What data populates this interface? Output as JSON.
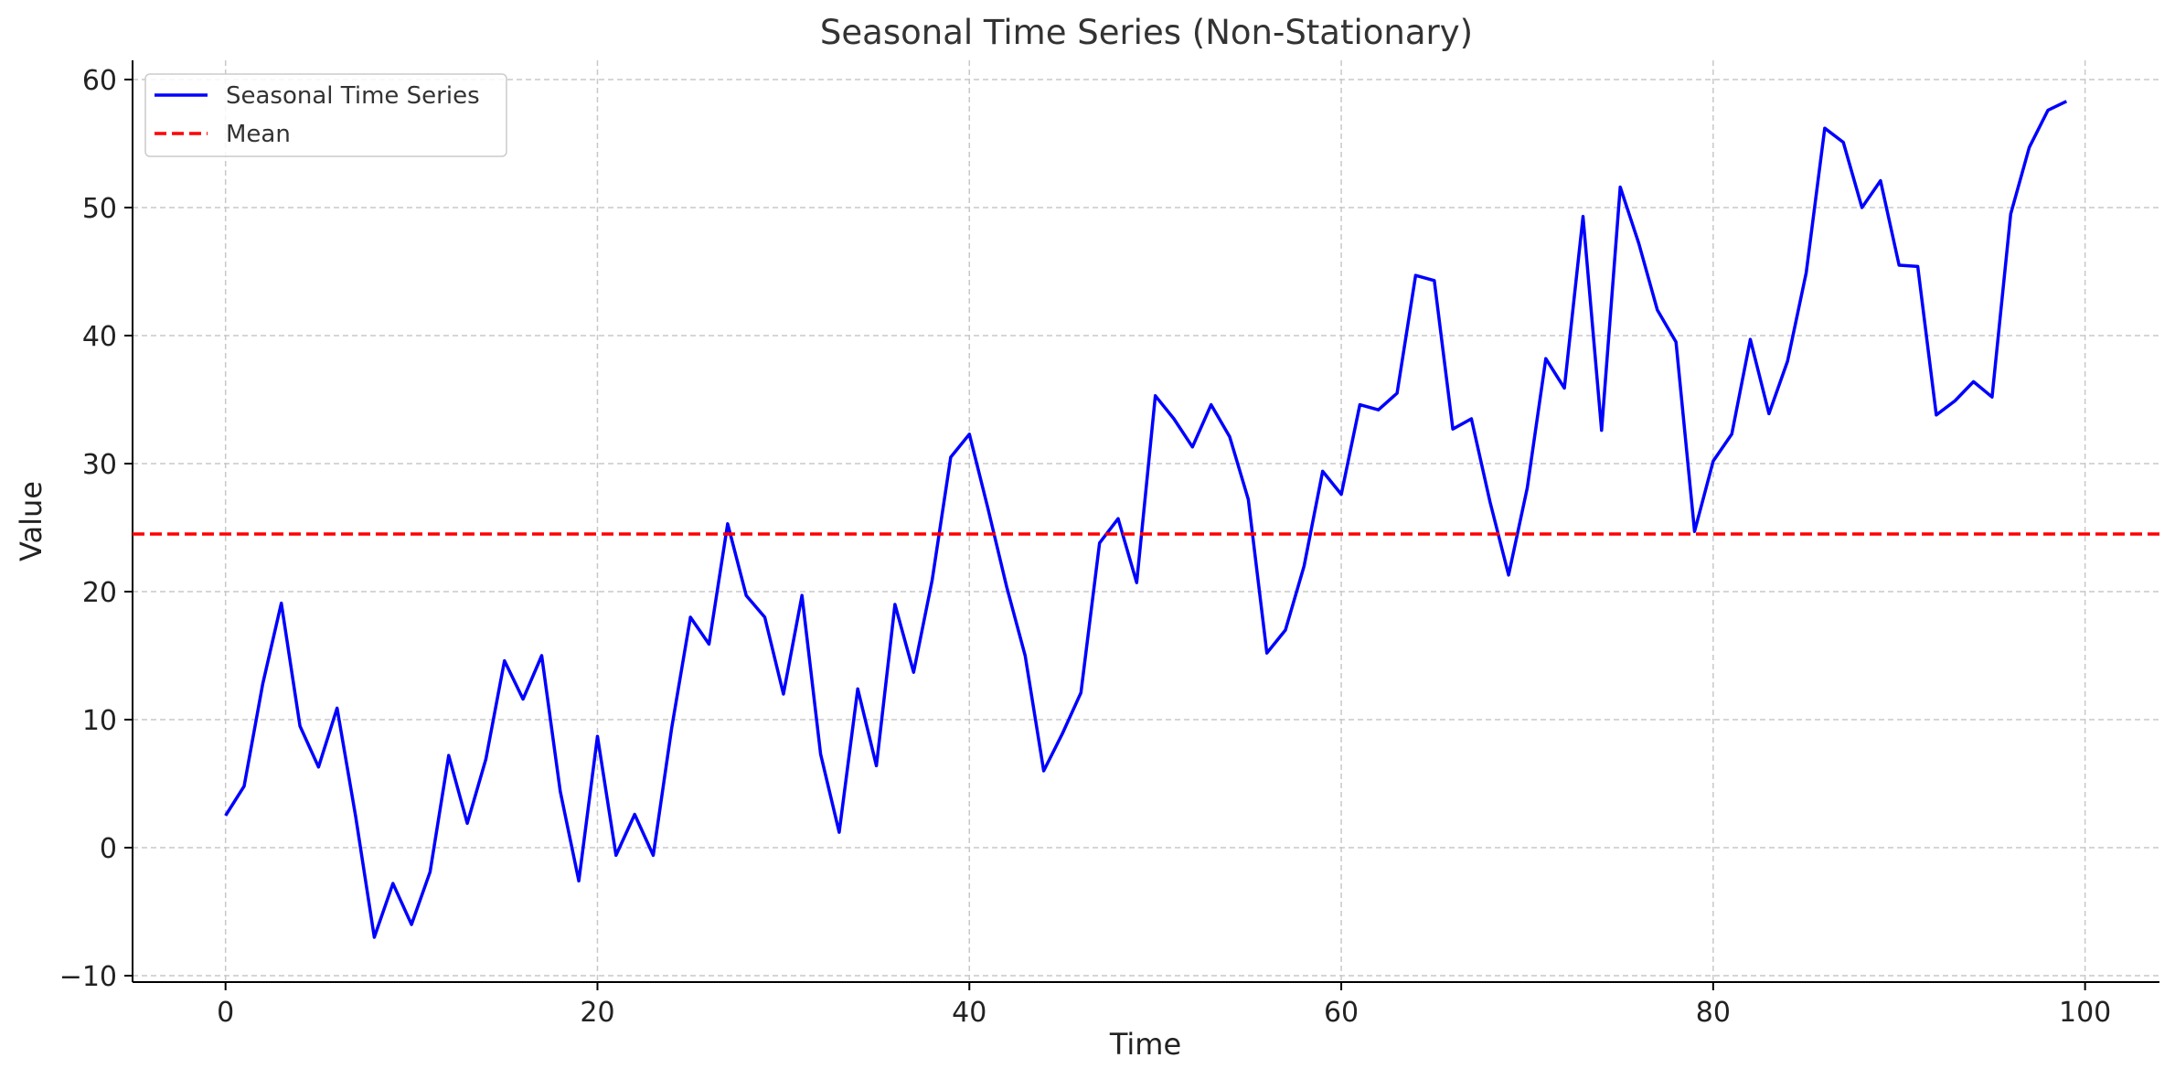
{
  "chart_data": {
    "type": "line",
    "title": "Seasonal Time Series (Non-Stationary)",
    "xlabel": "Time",
    "ylabel": "Value",
    "xlim": [
      -5,
      104
    ],
    "ylim": [
      -10.5,
      61.5
    ],
    "x_ticks": [
      0,
      20,
      40,
      60,
      80,
      100
    ],
    "x_tick_labels": [
      "0",
      "20",
      "40",
      "60",
      "80",
      "100"
    ],
    "y_ticks": [
      -10,
      0,
      10,
      20,
      30,
      40,
      50,
      60
    ],
    "y_tick_labels": [
      "−10",
      "0",
      "10",
      "20",
      "30",
      "40",
      "50",
      "60"
    ],
    "grid": true,
    "legend_position": "top-left",
    "series": [
      {
        "name": "Seasonal Time Series",
        "color": "#0000ff",
        "style": "solid",
        "x": [
          0,
          1,
          2,
          3,
          4,
          5,
          6,
          7,
          8,
          9,
          10,
          11,
          12,
          13,
          14,
          15,
          16,
          17,
          18,
          19,
          20,
          21,
          22,
          23,
          24,
          25,
          26,
          27,
          28,
          29,
          30,
          31,
          32,
          33,
          34,
          35,
          36,
          37,
          38,
          39,
          40,
          41,
          42,
          43,
          44,
          45,
          46,
          47,
          48,
          49,
          50,
          51,
          52,
          53,
          54,
          55,
          56,
          57,
          58,
          59,
          60,
          61,
          62,
          63,
          64,
          65,
          66,
          67,
          68,
          69,
          70,
          71,
          72,
          73,
          74,
          75,
          76,
          77,
          78,
          79,
          80,
          81,
          82,
          83,
          84,
          85,
          86,
          87,
          88,
          89,
          90,
          91,
          92,
          93,
          94,
          95,
          96,
          97,
          98,
          99
        ],
        "values": [
          2.5,
          4.8,
          12.8,
          19.1,
          9.5,
          6.3,
          10.9,
          2.4,
          -7.0,
          -2.8,
          -6.0,
          -1.9,
          7.2,
          1.9,
          6.9,
          14.6,
          11.6,
          15.0,
          4.4,
          -2.6,
          8.7,
          -0.6,
          2.6,
          -0.6,
          9.4,
          18.0,
          15.9,
          25.3,
          19.7,
          18.0,
          12.0,
          19.7,
          7.3,
          1.2,
          12.4,
          6.4,
          19.0,
          13.7,
          20.9,
          30.5,
          32.3,
          26.5,
          20.4,
          15.0,
          6.0,
          8.9,
          12.1,
          23.8,
          25.7,
          20.7,
          35.3,
          33.5,
          31.3,
          34.6,
          32.1,
          27.2,
          15.2,
          17.0,
          22.0,
          29.4,
          27.6,
          34.6,
          34.2,
          35.5,
          44.7,
          44.3,
          32.7,
          33.5,
          27.0,
          21.3,
          28.1,
          38.2,
          35.9,
          49.3,
          32.6,
          51.6,
          47.2,
          42.0,
          39.5,
          24.7,
          30.2,
          32.3,
          39.7,
          33.9,
          38.0,
          44.9,
          56.2,
          55.1,
          50.0,
          52.1,
          45.5,
          45.4,
          33.8,
          34.9,
          36.4,
          35.2,
          49.5,
          54.7,
          57.6,
          58.3
        ]
      },
      {
        "name": "Mean",
        "color": "#ff0000",
        "style": "dashed",
        "x": [
          -5,
          104
        ],
        "values": [
          24.5,
          24.5
        ]
      }
    ]
  }
}
